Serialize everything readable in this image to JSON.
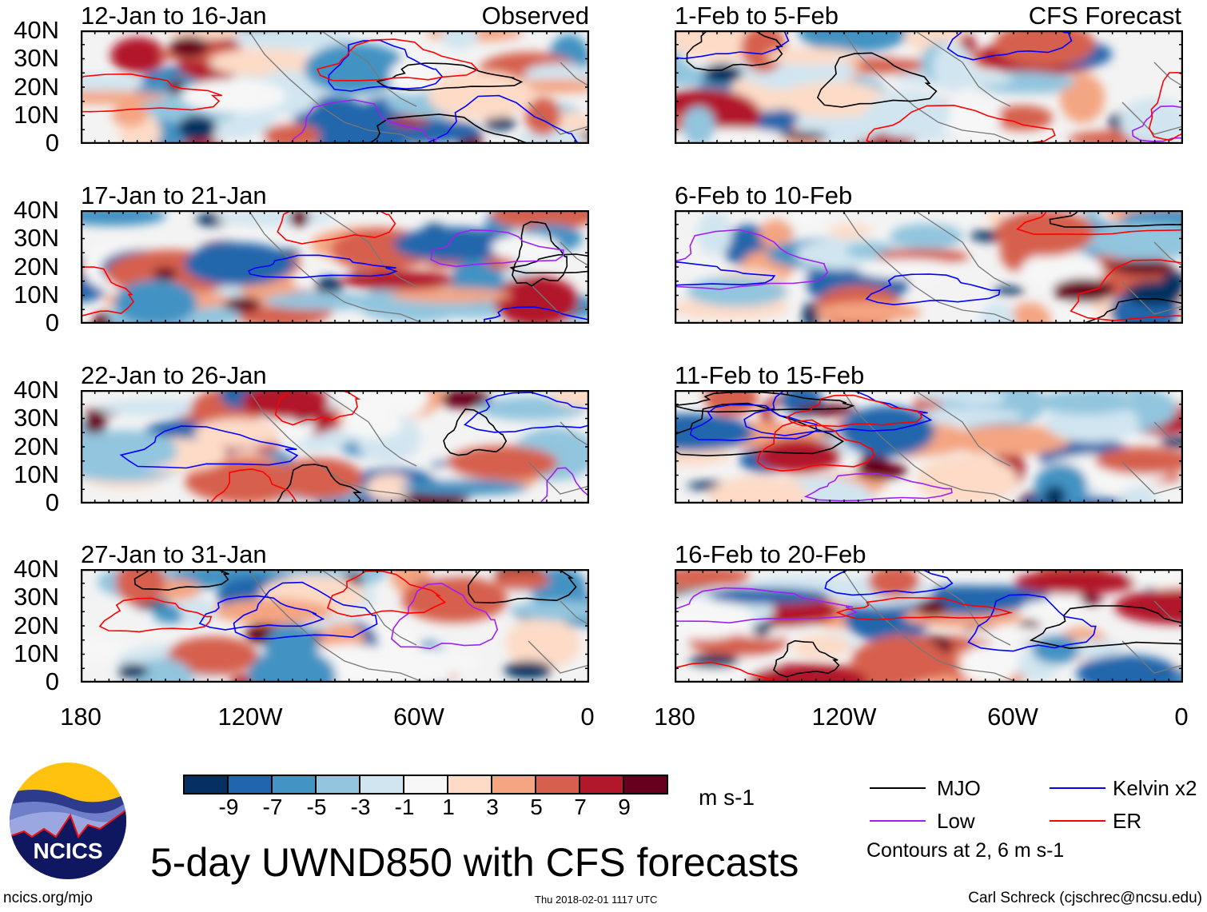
{
  "header": {
    "left_label": "Observed",
    "right_label": "CFS Forecast"
  },
  "panels": {
    "observed": [
      "12-Jan to 16-Jan",
      "17-Jan to 21-Jan",
      "22-Jan to 26-Jan",
      "27-Jan to 31-Jan"
    ],
    "forecast": [
      "1-Feb to 5-Feb",
      "6-Feb to 10-Feb",
      "11-Feb to 15-Feb",
      "16-Feb to 20-Feb"
    ]
  },
  "y_axis": [
    "40N",
    "30N",
    "20N",
    "10N",
    "0"
  ],
  "x_axis": [
    "180",
    "120W",
    "60W",
    "0"
  ],
  "colorbar": {
    "labels": [
      "-9",
      "-7",
      "-5",
      "-3",
      "-1",
      "1",
      "3",
      "5",
      "7",
      "9"
    ],
    "colors": [
      "#053061",
      "#2166ac",
      "#4393c3",
      "#92c5de",
      "#d1e5f0",
      "#f7f7f7",
      "#fddbc7",
      "#f4a582",
      "#d6604d",
      "#b2182b",
      "#67001f"
    ],
    "units": "m s-1"
  },
  "legend": {
    "items": [
      {
        "label": "MJO",
        "color": "#000000"
      },
      {
        "label": "Kelvin x2",
        "color": "#0000ff"
      },
      {
        "label": "Low",
        "color": "#a020f0"
      },
      {
        "label": "ER",
        "color": "#ff0000"
      }
    ],
    "contours_note": "Contours at 2, 6 m s-1"
  },
  "logo": {
    "text": "NCICS"
  },
  "title": "5-day UWND850 with CFS forecasts",
  "footer": {
    "url": "ncics.org/mjo",
    "timestamp": "Thu 2018-02-01 1117 UTC",
    "author": "Carl Schreck (cjschrec@ncsu.edu)"
  }
}
